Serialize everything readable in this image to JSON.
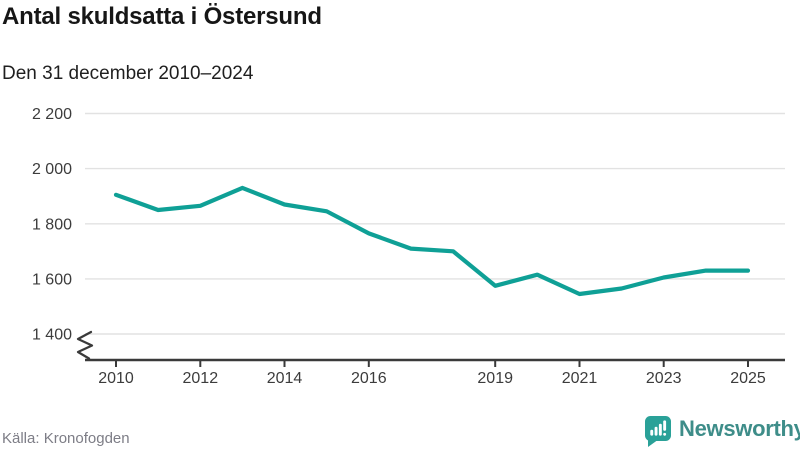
{
  "header": {
    "title": "Antal skuldsatta i Östersund",
    "subtitle": "Den 31 december 2010–2024"
  },
  "chart_data": {
    "type": "line",
    "title": "Antal skuldsatta i Östersund",
    "subtitle": "Den 31 december 2010–2024",
    "series_name": "Antal skuldsatta",
    "x": [
      2010,
      2011,
      2012,
      2013,
      2014,
      2015,
      2016,
      2017,
      2018,
      2019,
      2020,
      2021,
      2022,
      2023,
      2024
    ],
    "values": [
      1905,
      1850,
      1865,
      1930,
      1870,
      1845,
      1765,
      1710,
      1700,
      1575,
      1615,
      1545,
      1565,
      1605,
      1630
    ],
    "xlabel": "",
    "ylabel": "",
    "xlim": [
      2010,
      2025
    ],
    "ylim": [
      1400,
      2200
    ],
    "y_ticks": [
      1400,
      1600,
      1800,
      2000,
      2200
    ],
    "y_tick_labels": [
      "1 400",
      "1 600",
      "1 800",
      "2 000",
      "2 200"
    ],
    "x_ticks": [
      2010,
      2012,
      2014,
      2016,
      2019,
      2021,
      2023,
      2025
    ],
    "x_tick_labels": [
      "2010",
      "2012",
      "2014",
      "2016",
      "2019",
      "2021",
      "2023",
      "2025"
    ],
    "grid": "horizontal",
    "legend": "none",
    "y_axis_break": true,
    "last_value_extended_to": 2025
  },
  "footer": {
    "source": "Källa: Kronofogden",
    "brand_name": "Newsworthy"
  },
  "colors": {
    "line": "#0fa096",
    "grid": "#e2e2e2",
    "axis": "#3a3a3a",
    "tick_label": "#3c3c3c",
    "title": "#161616",
    "source": "#7d7d86",
    "brand_text": "#3e8d89",
    "brand_icon": "#2aa198"
  }
}
